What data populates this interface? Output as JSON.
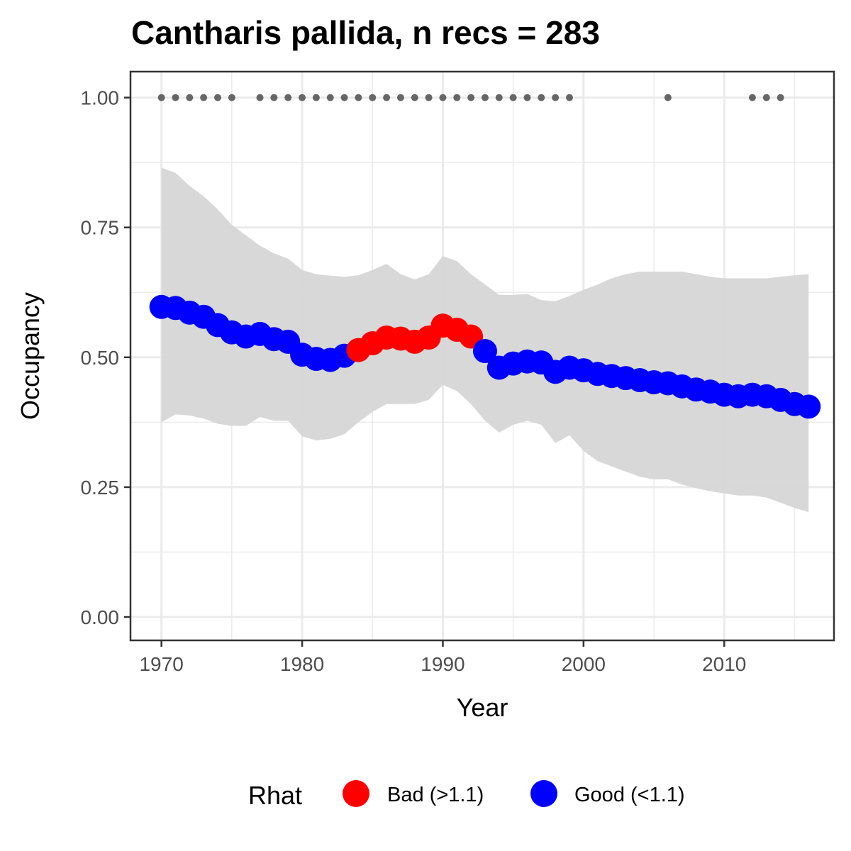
{
  "chart_data": {
    "type": "line",
    "title": "Cantharis pallida, n recs = 283",
    "xlabel": "Year",
    "ylabel": "Occupancy",
    "xlim": [
      1967.8,
      2017.8
    ],
    "ylim": [
      -0.045,
      1.05
    ],
    "x_ticks": [
      1970,
      1980,
      1990,
      2000,
      2010
    ],
    "x_tick_labels": [
      "1970",
      "1980",
      "1990",
      "2000",
      "2010"
    ],
    "y_ticks": [
      0,
      0.25,
      0.5,
      0.75,
      1.0
    ],
    "y_tick_labels": [
      "0.00",
      "0.25",
      "0.50",
      "0.75",
      "1.00"
    ],
    "grid": true,
    "legend": {
      "title": "Rhat",
      "position": "bottom",
      "entries": [
        {
          "label": "Bad (>1.1)",
          "color": "#ff0000"
        },
        {
          "label": "Good (<1.1)",
          "color": "#0000ff"
        }
      ]
    },
    "series": [
      {
        "x": [
          1970,
          1971,
          1972,
          1973,
          1974,
          1975,
          1976,
          1977,
          1978,
          1979,
          1980,
          1981,
          1982,
          1983,
          1984,
          1985,
          1986,
          1987,
          1988,
          1989,
          1990,
          1991,
          1992,
          1993,
          1994,
          1995,
          1996,
          1997,
          1998,
          1999,
          2000,
          2001,
          2002,
          2003,
          2004,
          2005,
          2006,
          2007,
          2008,
          2009,
          2010,
          2011,
          2012,
          2013,
          2014,
          2015,
          2016
        ],
        "y": [
          0.597,
          0.595,
          0.586,
          0.578,
          0.562,
          0.548,
          0.54,
          0.545,
          0.535,
          0.53,
          0.505,
          0.497,
          0.495,
          0.503,
          0.514,
          0.527,
          0.538,
          0.536,
          0.53,
          0.538,
          0.561,
          0.553,
          0.54,
          0.512,
          0.48,
          0.488,
          0.492,
          0.49,
          0.472,
          0.48,
          0.475,
          0.468,
          0.464,
          0.46,
          0.456,
          0.452,
          0.45,
          0.444,
          0.438,
          0.434,
          0.428,
          0.425,
          0.428,
          0.425,
          0.418,
          0.41,
          0.405
        ],
        "rhat": [
          "Good",
          "Good",
          "Good",
          "Good",
          "Good",
          "Good",
          "Good",
          "Good",
          "Good",
          "Good",
          "Good",
          "Good",
          "Good",
          "Good",
          "Bad",
          "Bad",
          "Bad",
          "Bad",
          "Bad",
          "Bad",
          "Bad",
          "Bad",
          "Bad",
          "Good",
          "Good",
          "Good",
          "Good",
          "Good",
          "Good",
          "Good",
          "Good",
          "Good",
          "Good",
          "Good",
          "Good",
          "Good",
          "Good",
          "Good",
          "Good",
          "Good",
          "Good",
          "Good",
          "Good",
          "Good",
          "Good",
          "Good",
          "Good"
        ],
        "lower": [
          0.375,
          0.39,
          0.388,
          0.382,
          0.372,
          0.368,
          0.368,
          0.385,
          0.378,
          0.378,
          0.348,
          0.34,
          0.343,
          0.352,
          0.375,
          0.395,
          0.41,
          0.41,
          0.41,
          0.418,
          0.447,
          0.435,
          0.41,
          0.378,
          0.355,
          0.37,
          0.378,
          0.37,
          0.335,
          0.35,
          0.32,
          0.3,
          0.29,
          0.28,
          0.27,
          0.265,
          0.265,
          0.255,
          0.248,
          0.242,
          0.238,
          0.234,
          0.234,
          0.23,
          0.22,
          0.21,
          0.202
        ],
        "upper": [
          0.865,
          0.855,
          0.83,
          0.81,
          0.785,
          0.755,
          0.735,
          0.715,
          0.7,
          0.69,
          0.668,
          0.66,
          0.657,
          0.655,
          0.658,
          0.668,
          0.68,
          0.66,
          0.65,
          0.66,
          0.695,
          0.685,
          0.66,
          0.64,
          0.62,
          0.62,
          0.622,
          0.61,
          0.608,
          0.618,
          0.63,
          0.64,
          0.652,
          0.66,
          0.665,
          0.665,
          0.665,
          0.665,
          0.66,
          0.655,
          0.652,
          0.652,
          0.652,
          0.652,
          0.655,
          0.658,
          0.66
        ]
      }
    ],
    "records": {
      "x": [
        1970,
        1971,
        1972,
        1973,
        1974,
        1975,
        1977,
        1978,
        1979,
        1980,
        1981,
        1982,
        1983,
        1984,
        1985,
        1986,
        1987,
        1988,
        1989,
        1990,
        1991,
        1992,
        1993,
        1994,
        1995,
        1996,
        1997,
        1998,
        1999,
        2006,
        2012,
        2013,
        2014
      ],
      "y": 1.0,
      "color": "#666666"
    },
    "ribbon_color": "#d6d6d6",
    "panel_border_color": "#333333",
    "grid_color": "#ebebeb"
  }
}
